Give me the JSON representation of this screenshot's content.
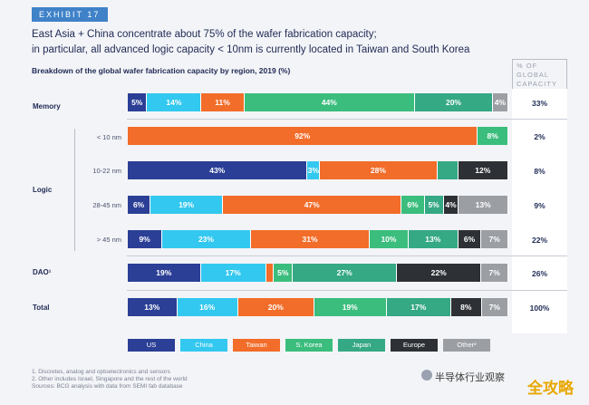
{
  "header": {
    "exhibit": "EXHIBIT 17",
    "title_line1": "East Asia + China concentrate about 75% of the wafer fabrication capacity;",
    "title_line2": "in particular, all advanced logic capacity < 10nm is currently located in Taiwan and South Korea",
    "subtitle": "Breakdown of the global wafer fabrication capacity by region, 2019 (%)",
    "share_header": "% OF GLOBAL CAPACITY"
  },
  "colors": {
    "US": "#2b3f96",
    "China": "#33c8ef",
    "Taiwan": "#f26d2a",
    "S. Korea": "#3bbd7d",
    "Japan": "#35a884",
    "Europe": "#2d3035",
    "Other": "#9b9ea3"
  },
  "chart_data": {
    "type": "bar",
    "stacked": true,
    "orientation": "horizontal",
    "unit": "%",
    "title": "Breakdown of the global wafer fabrication capacity by region, 2019 (%)",
    "legend": [
      "US",
      "China",
      "Taiwan",
      "S. Korea",
      "Japan",
      "Europe",
      "Other²"
    ],
    "legend_position": "bottom",
    "rows": [
      {
        "group": "Memory",
        "label": "Memory",
        "share": "33%",
        "values": [
          5,
          14,
          11,
          44,
          20,
          0,
          4
        ],
        "labels": [
          "5%",
          "14%",
          "11%",
          "44%",
          "20%",
          "",
          "4%"
        ]
      },
      {
        "group": "Logic",
        "label": "< 10 nm",
        "share": "2%",
        "values": [
          0,
          0,
          92,
          8,
          0,
          0,
          0
        ],
        "labels": [
          "",
          "",
          "92%",
          "8%",
          "",
          "",
          ""
        ]
      },
      {
        "group": "Logic",
        "label": "10-22 nm",
        "share": "8%",
        "values": [
          43,
          3,
          28,
          0,
          5,
          12,
          0
        ],
        "labels": [
          "43%",
          "3%",
          "28%",
          "",
          "",
          "12%",
          ""
        ]
      },
      {
        "group": "Logic",
        "label": "28-45 nm",
        "share": "9%",
        "values": [
          6,
          19,
          47,
          6,
          5,
          4,
          13
        ],
        "labels": [
          "6%",
          "19%",
          "47%",
          "6%",
          "5%",
          "4%",
          "13%"
        ]
      },
      {
        "group": "Logic",
        "label": "> 45 nm",
        "share": "22%",
        "values": [
          9,
          23,
          31,
          10,
          13,
          6,
          7
        ],
        "labels": [
          "9%",
          "23%",
          "31%",
          "10%",
          "13%",
          "6%",
          "7%"
        ]
      },
      {
        "group": "DAO¹",
        "label": "DAO¹",
        "share": "26%",
        "values": [
          19,
          17,
          2,
          5,
          27,
          22,
          7
        ],
        "labels": [
          "19%",
          "17%",
          "",
          "5%",
          "27%",
          "22%",
          "7%"
        ]
      },
      {
        "group": "Total",
        "label": "Total",
        "share": "100%",
        "values": [
          13,
          16,
          20,
          19,
          17,
          8,
          7
        ],
        "labels": [
          "13%",
          "16%",
          "20%",
          "19%",
          "17%",
          "8%",
          "7%"
        ]
      }
    ],
    "group_labels": [
      "Memory",
      "Logic",
      "DAO¹",
      "Total"
    ]
  },
  "footnotes": {
    "line1": "1. Discretes, analog and optoelectronics and sensors",
    "line2": "2. Other includes Israel, Singapore and the rest of the world",
    "line3": "Sources: BCG analysis with data from SEMI fab database"
  },
  "watermark": {
    "text": "半导体行业观察",
    "logo": "全攻略"
  }
}
